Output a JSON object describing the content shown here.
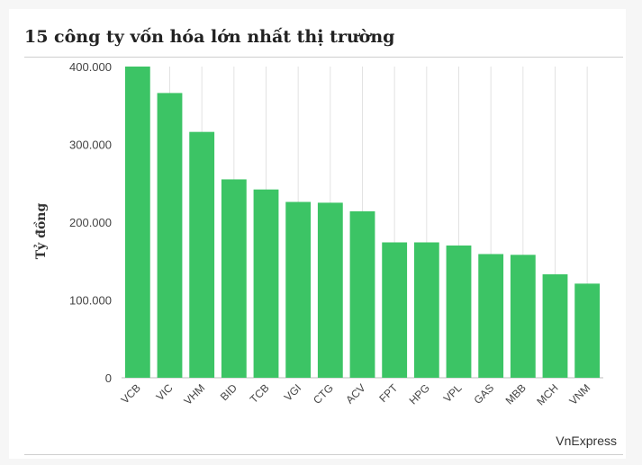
{
  "title": "15 công ty vốn hóa lớn nhất thị trường",
  "source": "VnExpress",
  "colors": {
    "bar": "#3cc465",
    "grid": "#e2e2e2",
    "axis": "#bdbdbd"
  },
  "chart_data": {
    "type": "bar",
    "title": "15 công ty vốn hóa lớn nhất thị trường",
    "xlabel": "",
    "ylabel": "Tỷ đồng",
    "ylim": [
      0,
      400000
    ],
    "yticks": [
      0,
      100000,
      200000,
      300000,
      400000
    ],
    "ytick_labels": [
      "0",
      "100.000",
      "200.000",
      "300.000",
      "400.000"
    ],
    "grid": "vertical",
    "categories": [
      "VCB",
      "VIC",
      "VHM",
      "BID",
      "TCB",
      "VGI",
      "CTG",
      "ACV",
      "FPT",
      "HPG",
      "VPL",
      "GAS",
      "MBB",
      "MCH",
      "VNM"
    ],
    "values": [
      400000,
      366000,
      316000,
      255000,
      242000,
      226000,
      225000,
      214000,
      174000,
      174000,
      170000,
      159000,
      158000,
      133000,
      121000
    ]
  }
}
